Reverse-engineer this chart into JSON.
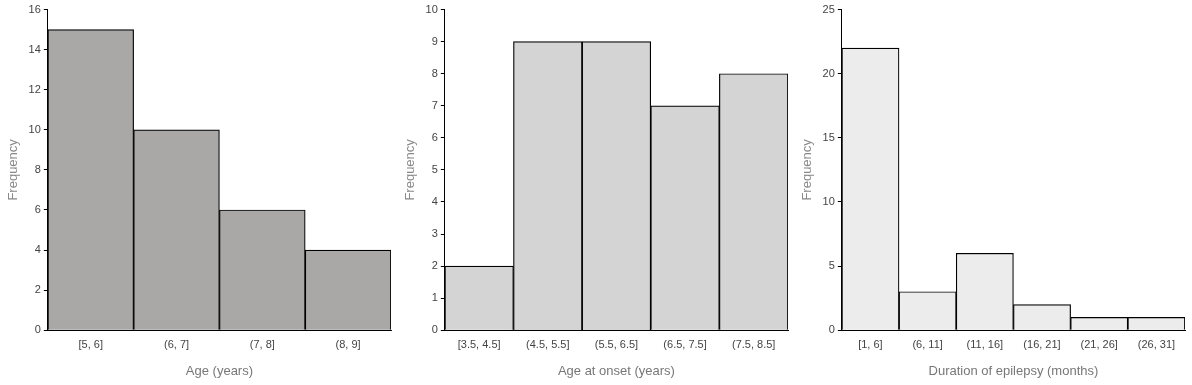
{
  "chart_data": [
    {
      "type": "bar",
      "categories": [
        "[5, 6]",
        "(6, 7]",
        "(7, 8]",
        "(8, 9]"
      ],
      "values": [
        15,
        10,
        6,
        4
      ],
      "color": "#aaa7a7",
      "ylim": [
        0,
        16
      ],
      "yticks": [
        0,
        2,
        4,
        6,
        8,
        10,
        12,
        14,
        16
      ],
      "xlabel": "Age (years)",
      "ylabel": "Frequency"
    },
    {
      "type": "bar",
      "categories": [
        "[3.5, 4.5]",
        "(4.5, 5.5]",
        "(5.5, 6.5]",
        "(6.5, 7.5]",
        "(7.5, 8.5]"
      ],
      "values": [
        2,
        9,
        9,
        7,
        8
      ],
      "color": "#d4d4d4",
      "ylim": [
        0,
        10
      ],
      "yticks": [
        0,
        1,
        2,
        3,
        4,
        5,
        6,
        7,
        8,
        9,
        10
      ],
      "xlabel": "Age at onset (years)",
      "ylabel": "Frequency"
    },
    {
      "type": "bar",
      "categories": [
        "[1, 6]",
        "(6, 11]",
        "(11, 16]",
        "(16, 21]",
        "(21, 26]",
        "(26, 31]"
      ],
      "values": [
        22,
        3,
        6,
        2,
        1,
        1
      ],
      "color": "#ececec",
      "ylim": [
        0,
        25
      ],
      "yticks": [
        0,
        5,
        10,
        15,
        20,
        25
      ],
      "xlabel": "Duration of epilepsy (months)",
      "ylabel": "Frequency"
    }
  ]
}
